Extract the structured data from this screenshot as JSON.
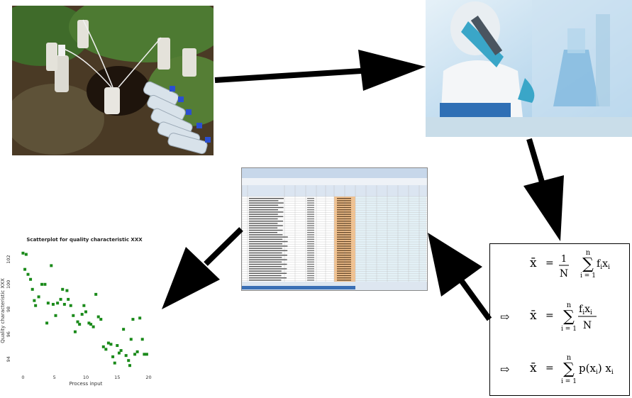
{
  "colors": {
    "arrow": "#000000",
    "marker_green": "#1a8a1a",
    "soil": "#4a3a25",
    "foliage": "#3f6b2a",
    "lab_blue": "#9cc7e6",
    "lab_glove": "#3aa6c8",
    "sheet_highlight": "#f5c28c",
    "sheet_header": "#dbe5f1"
  },
  "images": {
    "field_photo": "field-sampling-bottles-in-soil",
    "lab_photo": "lab-scientist-with-pipette-and-flasks",
    "spreadsheet": "spreadsheet-data-table"
  },
  "chart_data": {
    "type": "scatter",
    "title": "Scatterplot for quality characteristic XXX",
    "xlabel": "Process input",
    "ylabel": "Quality characteristic XXX",
    "xlim": [
      -0.5,
      20.5
    ],
    "ylim": [
      93,
      103
    ],
    "xticks": [
      0,
      5,
      10,
      15,
      20
    ],
    "yticks": [
      94,
      96,
      98,
      100,
      102
    ],
    "grid": false,
    "legend": "none",
    "marker": "square",
    "points": [
      {
        "x": 0,
        "y": 102.5
      },
      {
        "x": 0.5,
        "y": 102.4
      },
      {
        "x": 0.3,
        "y": 101.2
      },
      {
        "x": 0.8,
        "y": 100.8
      },
      {
        "x": 1.2,
        "y": 100.4
      },
      {
        "x": 1.5,
        "y": 99.6
      },
      {
        "x": 1.8,
        "y": 98.7
      },
      {
        "x": 2.0,
        "y": 98.3
      },
      {
        "x": 2.5,
        "y": 99.0
      },
      {
        "x": 3.0,
        "y": 100.0
      },
      {
        "x": 3.5,
        "y": 100.0
      },
      {
        "x": 3.8,
        "y": 96.9
      },
      {
        "x": 4.0,
        "y": 98.5
      },
      {
        "x": 4.5,
        "y": 101.5
      },
      {
        "x": 4.8,
        "y": 98.4
      },
      {
        "x": 5.2,
        "y": 97.5
      },
      {
        "x": 5.5,
        "y": 98.5
      },
      {
        "x": 6.0,
        "y": 98.8
      },
      {
        "x": 6.3,
        "y": 99.6
      },
      {
        "x": 6.6,
        "y": 98.4
      },
      {
        "x": 7.0,
        "y": 99.5
      },
      {
        "x": 7.2,
        "y": 98.8
      },
      {
        "x": 7.6,
        "y": 98.3
      },
      {
        "x": 8.0,
        "y": 97.5
      },
      {
        "x": 8.3,
        "y": 96.2
      },
      {
        "x": 8.7,
        "y": 97.0
      },
      {
        "x": 9.0,
        "y": 96.8
      },
      {
        "x": 9.4,
        "y": 97.6
      },
      {
        "x": 9.7,
        "y": 98.3
      },
      {
        "x": 10.0,
        "y": 97.8
      },
      {
        "x": 10.5,
        "y": 96.9
      },
      {
        "x": 10.8,
        "y": 96.8
      },
      {
        "x": 11.2,
        "y": 96.6
      },
      {
        "x": 11.6,
        "y": 99.2
      },
      {
        "x": 12.0,
        "y": 97.4
      },
      {
        "x": 12.4,
        "y": 97.2
      },
      {
        "x": 12.8,
        "y": 95.0
      },
      {
        "x": 13.2,
        "y": 94.8
      },
      {
        "x": 13.6,
        "y": 95.3
      },
      {
        "x": 14.0,
        "y": 95.2
      },
      {
        "x": 14.3,
        "y": 94.2
      },
      {
        "x": 14.6,
        "y": 93.7
      },
      {
        "x": 15.0,
        "y": 95.1
      },
      {
        "x": 15.3,
        "y": 94.5
      },
      {
        "x": 15.6,
        "y": 94.7
      },
      {
        "x": 16.0,
        "y": 96.4
      },
      {
        "x": 16.4,
        "y": 94.3
      },
      {
        "x": 16.8,
        "y": 93.9
      },
      {
        "x": 17.2,
        "y": 95.6
      },
      {
        "x": 17.5,
        "y": 97.2
      },
      {
        "x": 17.8,
        "y": 94.4
      },
      {
        "x": 18.2,
        "y": 94.6
      },
      {
        "x": 18.6,
        "y": 97.3
      },
      {
        "x": 19.0,
        "y": 95.6
      },
      {
        "x": 19.3,
        "y": 94.4
      },
      {
        "x": 19.7,
        "y": 94.4
      },
      {
        "x": 17.0,
        "y": 93.5
      }
    ]
  },
  "formulas": {
    "xbar": "x̄",
    "equals": "=",
    "f1_num": "1",
    "f1_den": "N",
    "sum": "∑",
    "sum_top": "n",
    "sum_bottom": "i = 1",
    "f1_term": "fixi",
    "f2_num": "fixi",
    "f2_den": "N",
    "f3_term": "p(xi) xi",
    "implies": "⇨"
  }
}
